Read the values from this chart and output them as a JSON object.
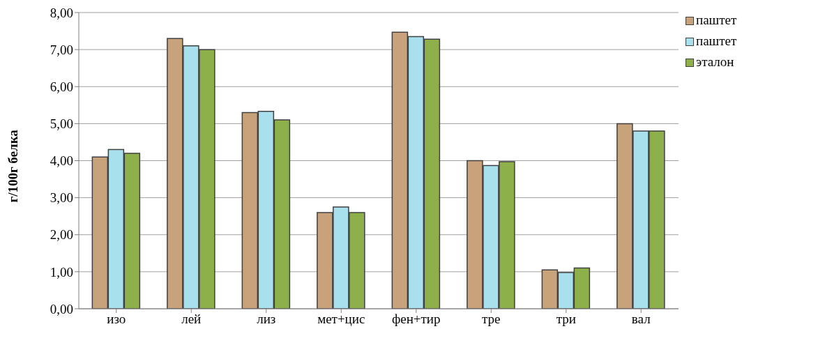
{
  "chart_data": {
    "type": "bar",
    "ylabel": "г/100г белка",
    "categories": [
      "изо",
      "лей",
      "лиз",
      "мет+цис",
      "фен+тир",
      "тре",
      "три",
      "вал"
    ],
    "series": [
      {
        "name": "паштет",
        "color": "#c8a27a",
        "values": [
          4.1,
          7.3,
          5.3,
          2.6,
          7.47,
          4.0,
          1.05,
          5.0
        ]
      },
      {
        "name": "паштет",
        "color": "#a8e0ee",
        "values": [
          4.3,
          7.1,
          5.33,
          2.75,
          7.35,
          3.87,
          0.98,
          4.8
        ]
      },
      {
        "name": "эталон",
        "color": "#8db04a",
        "values": [
          4.2,
          7.0,
          5.1,
          2.6,
          7.28,
          3.97,
          1.1,
          4.8
        ]
      }
    ],
    "ylim": [
      0,
      8
    ],
    "yticks": [
      {
        "value": 0,
        "label": "0,00"
      },
      {
        "value": 1,
        "label": "1,00"
      },
      {
        "value": 2,
        "label": "2,00"
      },
      {
        "value": 3,
        "label": "3,00"
      },
      {
        "value": 4,
        "label": "4,00"
      },
      {
        "value": 5,
        "label": "5,00"
      },
      {
        "value": 6,
        "label": "6,00"
      },
      {
        "value": 7,
        "label": "7,00"
      },
      {
        "value": 8,
        "label": "8,00"
      }
    ],
    "grid": "y",
    "legend": "right"
  }
}
